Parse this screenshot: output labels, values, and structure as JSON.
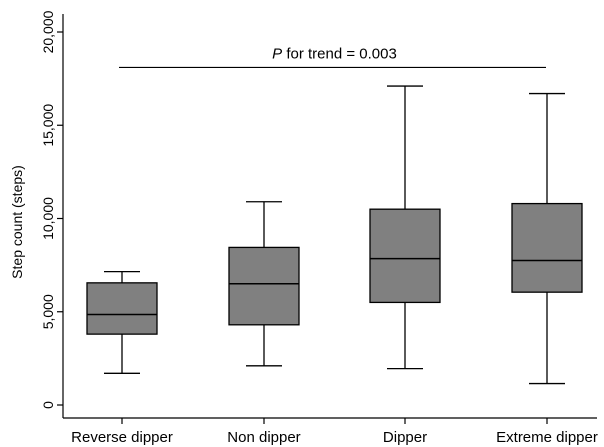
{
  "chart_data": {
    "type": "box",
    "ylabel": "Step count (steps)",
    "ylim": [
      0,
      20000
    ],
    "yticks": [
      0,
      5000,
      10000,
      15000,
      20000
    ],
    "ytick_labels": [
      "0",
      "5,000",
      "10,000",
      "15,000",
      "20,000"
    ],
    "categories": [
      "Reverse dipper",
      "Non dipper",
      "Dipper",
      "Extreme dipper"
    ],
    "boxes": [
      {
        "category": "Reverse dipper",
        "whisker_low": 1700,
        "q1": 3800,
        "median": 4850,
        "q3": 6550,
        "whisker_high": 7150
      },
      {
        "category": "Non dipper",
        "whisker_low": 2100,
        "q1": 4300,
        "median": 6500,
        "q3": 8450,
        "whisker_high": 10900
      },
      {
        "category": "Dipper",
        "whisker_low": 1950,
        "q1": 5500,
        "median": 7850,
        "q3": 10500,
        "whisker_high": 17100
      },
      {
        "category": "Extreme dipper",
        "whisker_low": 1150,
        "q1": 6050,
        "median": 7750,
        "q3": 10800,
        "whisker_high": 16700
      }
    ],
    "annotation": {
      "p_symbol": "P",
      "text": " for trend = 0.003",
      "bracket_y": 18100
    },
    "box_fill": "#808080",
    "line_color": "#000000",
    "grid": false
  }
}
